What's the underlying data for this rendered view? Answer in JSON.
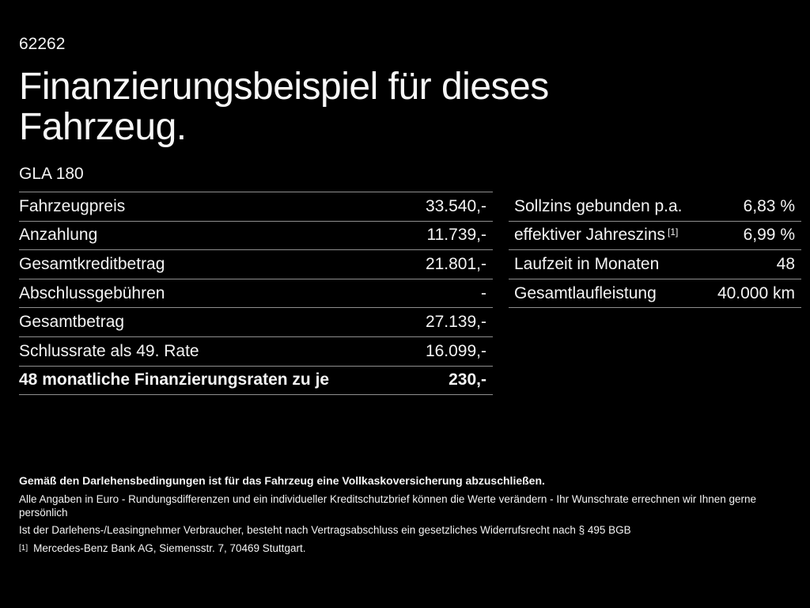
{
  "page": {
    "doc_number": "62262",
    "title_line1": "Finanzierungsbeispiel für dieses",
    "title_line2": "Fahrzeug.",
    "model": "GLA 180"
  },
  "finance_table": {
    "rows": [
      {
        "label": "Fahrzeugpreis",
        "value": "33.540,-"
      },
      {
        "label": "Anzahlung",
        "value": "11.739,-"
      },
      {
        "label": "Gesamtkreditbetrag",
        "value": "21.801,-"
      },
      {
        "label": "Abschlussgebühren",
        "value": "-"
      },
      {
        "label": "Gesamtbetrag",
        "value": "27.139,-"
      },
      {
        "label": "Schlussrate als 49. Rate",
        "value": "16.099,-"
      },
      {
        "label": "48 monatliche Finanzierungsraten zu je",
        "value": "230,-"
      }
    ]
  },
  "conditions_table": {
    "rows": [
      {
        "label": "Sollzins gebunden p.a.",
        "sup": "",
        "value": "6,83 %"
      },
      {
        "label": "effektiver Jahreszins",
        "sup": "[1]",
        "value": "6,99 %"
      },
      {
        "label": "Laufzeit in Monaten",
        "sup": "",
        "value": "48"
      },
      {
        "label": "Gesamtlaufleistung",
        "sup": "",
        "value": "40.000 km"
      }
    ]
  },
  "footnotes": {
    "insurance_note": "Gemäß den Darlehensbedingungen ist für das Fahrzeug eine Vollkaskoversicherung abzuschließen.",
    "disclaimer1": "Alle Angaben in Euro - Rundungsdifferenzen und ein individueller Kreditschutzbrief können die Werte verändern - Ihr Wunschrate errechnen wir Ihnen gerne persönlich",
    "disclaimer2": "Ist der Darlehens-/Leasingnehmer Verbraucher, besteht nach Vertragsabschluss ein gesetzliches Widerrufsrecht nach § 495 BGB",
    "footnote_marker": "[1]",
    "footnote_text": "Mercedes-Benz Bank AG, Siemensstr. 7, 70469 Stuttgart."
  },
  "colors": {
    "background": "#000000",
    "text": "#f4f4f4",
    "divider": "#8f8f8f"
  }
}
